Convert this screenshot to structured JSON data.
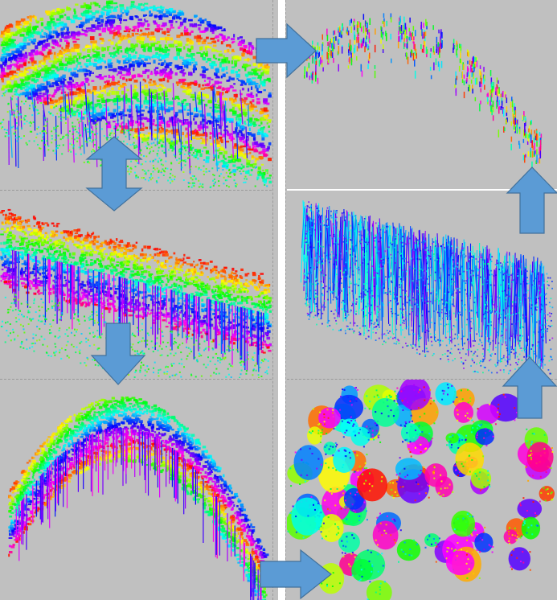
{
  "figure": {
    "background": "#c0c0c0",
    "separator_color": "#ffffff",
    "arrow_fill": "#5b9bd5",
    "arrow_stroke": "#41719c",
    "hue_palette": [
      "#ff0000",
      "#ff7f00",
      "#ffff00",
      "#7fff00",
      "#00ff00",
      "#00ffbf",
      "#00bfff",
      "#0040ff",
      "#7f00ff",
      "#ff00ff"
    ]
  },
  "panels": [
    {
      "id": "point-cloud-full",
      "description_key": "full"
    },
    {
      "id": "point-cloud-ground-removed",
      "description_key": "ground_removed"
    },
    {
      "id": "point-cloud-normalized",
      "description_key": "normalized"
    },
    {
      "id": "tree-crowns-segmented",
      "description_key": "crowns"
    },
    {
      "id": "stems-dense",
      "description_key": "stems_dense"
    },
    {
      "id": "stems-sparse",
      "description_key": "stems_sparse"
    }
  ],
  "arrows": [
    {
      "id": "double-vertical",
      "direction": "up-down"
    },
    {
      "id": "down",
      "direction": "down"
    },
    {
      "id": "right-bottom",
      "direction": "right"
    },
    {
      "id": "up-lower",
      "direction": "up"
    },
    {
      "id": "up-upper",
      "direction": "up"
    },
    {
      "id": "right-top",
      "direction": "right"
    }
  ]
}
